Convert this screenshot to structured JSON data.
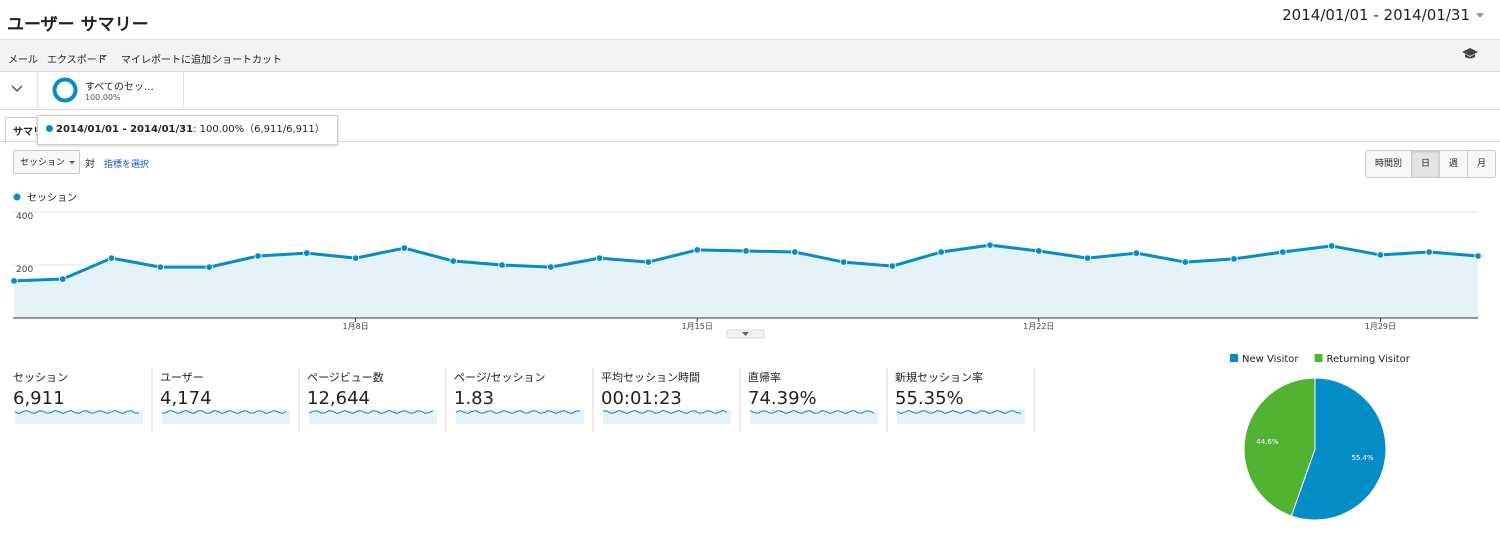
{
  "header": {
    "title": "ユーザー サマリー",
    "date_range": "2014/01/01 - 2014/01/31"
  },
  "toolbar": [
    "メール",
    "エクスポート",
    "マイレポートに追加",
    "ショートカット"
  ],
  "segment": {
    "name": "すべてのセッ…",
    "percent": "100.00%"
  },
  "tab": "サマリー",
  "tooltip": {
    "range": "2014/01/01 - 2014/01/31",
    "detail": ": 100.00%（6,911/6,911）"
  },
  "controls": {
    "metric": "セッション",
    "versus": "対",
    "select_metric": "指標を選択",
    "granularity": [
      "時間別",
      "日",
      "週",
      "月"
    ]
  },
  "metrics": [
    {
      "label": "セッション",
      "value": "6,911"
    },
    {
      "label": "ユーザー",
      "value": "4,174"
    },
    {
      "label": "ページビュー数",
      "value": "12,644"
    },
    {
      "label": "ページ/セッション",
      "value": "1.83"
    },
    {
      "label": "平均セッション時間",
      "value": "00:01:23"
    },
    {
      "label": "直帰率",
      "value": "74.39%"
    },
    {
      "label": "新規セッション率",
      "value": "55.35%"
    }
  ],
  "chart_data": [
    {
      "type": "line",
      "categories": [
        null,
        null,
        null,
        null,
        null,
        null,
        null,
        "1月8日",
        null,
        null,
        null,
        null,
        null,
        null,
        "1月15日",
        null,
        null,
        null,
        null,
        null,
        null,
        "1月22日",
        null,
        null,
        null,
        null,
        null,
        null,
        "1月29日",
        null,
        null
      ],
      "series": [
        {
          "name": "セッション",
          "color": "#058dc7",
          "values": [
            140,
            147,
            226,
            192,
            192,
            234,
            245,
            226,
            264,
            215,
            200,
            192,
            226,
            211,
            257,
            253,
            249,
            211,
            196,
            249,
            275,
            253,
            226,
            245,
            211,
            223,
            249,
            272,
            238,
            249,
            234
          ]
        }
      ],
      "ylim": [
        0,
        400
      ],
      "yticks": [
        200,
        400
      ],
      "grid": true
    },
    {
      "type": "pie",
      "categories": [
        "New Visitor",
        "Returning Visitor"
      ],
      "values": [
        55.4,
        44.6
      ],
      "value_labels": [
        "55.4%",
        "44.6%"
      ],
      "colors": [
        "#058dc7",
        "#50b432"
      ]
    }
  ]
}
